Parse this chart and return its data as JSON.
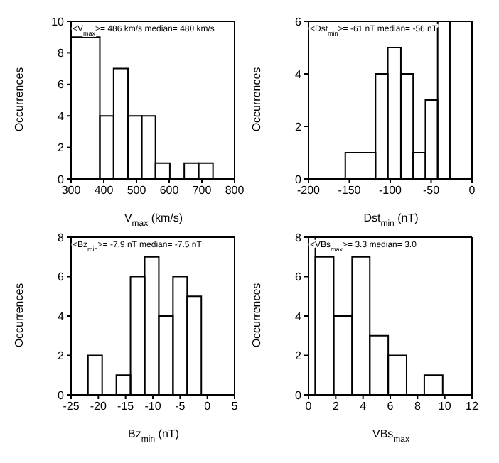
{
  "chart_data": [
    {
      "type": "histogram",
      "xlabel": "V$_{max}$ (km/s)",
      "ylabel": "Occurrences",
      "annotations": [
        "<V$_{max}$>= 486 km/s   median= 480 km/s"
      ],
      "bins": [
        300,
        388,
        430,
        474,
        516,
        558,
        602,
        646,
        690,
        734
      ],
      "values": [
        9,
        4,
        7,
        4,
        4,
        1,
        0,
        1,
        1
      ],
      "color": "#000000",
      "xlim": [
        300,
        800
      ],
      "xticks": [
        300,
        400,
        500,
        600,
        700,
        800
      ],
      "ylim": [
        0,
        10
      ],
      "yticks": [
        0,
        2,
        4,
        6,
        8,
        10
      ]
    },
    {
      "type": "histogram",
      "xlabel": "Dst$_{min}$ (nT)",
      "ylabel": "Occurrences",
      "annotations": [
        "<Dst$_{min}$>= -61 nT   median= -56 nT"
      ],
      "bins": [
        -155,
        -118,
        -103,
        -87,
        -72,
        -57,
        -42,
        -27
      ],
      "values": [
        1,
        4,
        5,
        4,
        1,
        3,
        6
      ],
      "color": "#000000",
      "xlim": [
        -200,
        0
      ],
      "xticks": [
        -200,
        -150,
        -100,
        -50,
        0
      ],
      "ylim": [
        0,
        6
      ],
      "yticks": [
        0,
        2,
        4,
        6
      ]
    },
    {
      "type": "histogram",
      "xlabel": "Bz$_{min}$ (nT)",
      "ylabel": "Occurrences",
      "annotations": [
        "<Bz$_{min}$>=   -7.9 nT   median=   -7.5 nT"
      ],
      "bins": [
        -21.9,
        -19.3,
        -16.7,
        -14.1,
        -11.5,
        -8.9,
        -6.3,
        -3.7,
        -1.1
      ],
      "values": [
        2,
        0,
        1,
        6,
        7,
        4,
        6,
        5
      ],
      "color": "#000000",
      "xlim": [
        -25,
        5
      ],
      "xticks": [
        -25,
        -20,
        -15,
        -10,
        -5,
        0,
        5
      ],
      "ylim": [
        0,
        8
      ],
      "yticks": [
        0,
        2,
        4,
        6,
        8
      ]
    },
    {
      "type": "histogram",
      "xlabel": "VBs$_{max}$",
      "ylabel": "Occurrences",
      "annotations": [
        "<VBs$_{max}$>=   3.3   median=   3.0"
      ],
      "bins": [
        0,
        0.5,
        1.85,
        3.2,
        4.5,
        5.85,
        7.2,
        8.5,
        9.85
      ],
      "values": [
        8,
        7,
        4,
        7,
        3,
        2,
        0,
        1
      ],
      "color": "#000000",
      "xlim": [
        0,
        12
      ],
      "xticks": [
        0,
        2,
        4,
        6,
        8,
        10,
        12
      ],
      "ylim": [
        0,
        8
      ],
      "yticks": [
        0,
        2,
        4,
        6,
        8
      ]
    }
  ]
}
